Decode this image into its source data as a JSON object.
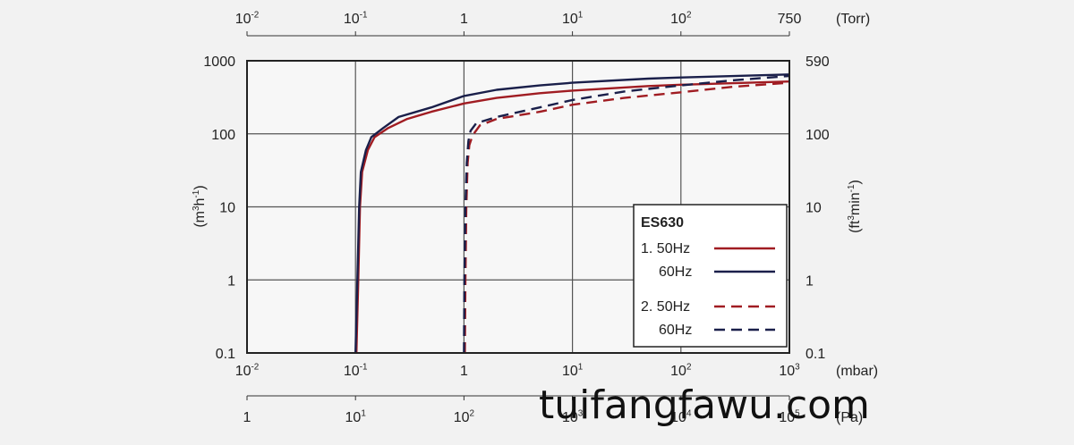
{
  "chart_data": {
    "type": "line",
    "title": "",
    "legend": {
      "title": "ES630",
      "placement": "bottom-right",
      "entries": [
        {
          "label": "1. 50Hz",
          "series": 0
        },
        {
          "label": "60Hz",
          "series": 1
        },
        {
          "label": "2. 50Hz",
          "series": 2
        },
        {
          "label": "60Hz",
          "series": 3
        }
      ]
    },
    "x_scale": "log",
    "y_scale": "log",
    "xlim": [
      0.01,
      1000
    ],
    "ylim": [
      0.1,
      1000
    ],
    "grid": true,
    "axes": {
      "bottom": {
        "unit": "(mbar)",
        "ticks": [
          {
            "v": 0.01,
            "b": "10",
            "e": "-2"
          },
          {
            "v": 0.1,
            "b": "10",
            "e": "-1"
          },
          {
            "v": 1,
            "b": "1",
            "e": ""
          },
          {
            "v": 10,
            "b": "10",
            "e": "1"
          },
          {
            "v": 100,
            "b": "10",
            "e": "2"
          },
          {
            "v": 1000,
            "b": "10",
            "e": "3"
          }
        ]
      },
      "secondary_bottom": {
        "unit": "(Pa)",
        "ticks": [
          {
            "v": 1,
            "b": "1",
            "e": ""
          },
          {
            "v": 10,
            "b": "10",
            "e": "1"
          },
          {
            "v": 100,
            "b": "10",
            "e": "2"
          },
          {
            "v": 1000,
            "b": "10",
            "e": "3"
          },
          {
            "v": 10000,
            "b": "10",
            "e": "4"
          },
          {
            "v": 100000,
            "b": "10",
            "e": "5"
          }
        ]
      },
      "top": {
        "unit": "(Torr)",
        "ticks": [
          {
            "v": 0.01,
            "b": "10",
            "e": "-2"
          },
          {
            "v": 0.1,
            "b": "10",
            "e": "-1"
          },
          {
            "v": 1,
            "b": "1",
            "e": ""
          },
          {
            "v": 10,
            "b": "10",
            "e": "1"
          },
          {
            "v": 100,
            "b": "10",
            "e": "2"
          },
          {
            "v": 750,
            "b": "750",
            "e": ""
          }
        ]
      },
      "left": {
        "label_base": "(m",
        "label_sup1": "3",
        "label_mid": "h",
        "label_sup2": "-1",
        "label_end": ")",
        "ticks": [
          {
            "v": 0.1,
            "t": "0.1"
          },
          {
            "v": 1,
            "t": "1"
          },
          {
            "v": 10,
            "t": "10"
          },
          {
            "v": 100,
            "t": "100"
          },
          {
            "v": 1000,
            "t": "1000"
          }
        ]
      },
      "right": {
        "label_base": "(ft",
        "label_sup1": "3",
        "label_mid": "min",
        "label_sup2": "-1",
        "label_end": ")",
        "ticks": [
          {
            "v": 0.1,
            "t": "0.1"
          },
          {
            "v": 1,
            "t": "1"
          },
          {
            "v": 10,
            "t": "10"
          },
          {
            "v": 100,
            "t": "100"
          },
          {
            "v": 590,
            "t": "590"
          }
        ]
      }
    },
    "series": [
      {
        "color": "#a01c22",
        "dash": false,
        "points": [
          [
            0.102,
            0.1
          ],
          [
            0.106,
            1
          ],
          [
            0.11,
            10
          ],
          [
            0.115,
            30
          ],
          [
            0.13,
            60
          ],
          [
            0.15,
            90
          ],
          [
            0.2,
            120
          ],
          [
            0.3,
            160
          ],
          [
            0.5,
            200
          ],
          [
            1,
            260
          ],
          [
            2,
            310
          ],
          [
            5,
            360
          ],
          [
            10,
            390
          ],
          [
            50,
            450
          ],
          [
            100,
            470
          ],
          [
            1000,
            520
          ]
        ]
      },
      {
        "color": "#1a1f4a",
        "dash": false,
        "points": [
          [
            0.1,
            0.1
          ],
          [
            0.104,
            1
          ],
          [
            0.108,
            10
          ],
          [
            0.112,
            30
          ],
          [
            0.125,
            60
          ],
          [
            0.14,
            90
          ],
          [
            0.18,
            120
          ],
          [
            0.25,
            170
          ],
          [
            0.5,
            230
          ],
          [
            1,
            330
          ],
          [
            2,
            400
          ],
          [
            5,
            460
          ],
          [
            10,
            500
          ],
          [
            50,
            570
          ],
          [
            100,
            590
          ],
          [
            1000,
            650
          ]
        ]
      },
      {
        "color": "#a01c22",
        "dash": true,
        "points": [
          [
            1.02,
            0.1
          ],
          [
            1.03,
            1
          ],
          [
            1.05,
            10
          ],
          [
            1.08,
            40
          ],
          [
            1.12,
            70
          ],
          [
            1.2,
            95
          ],
          [
            1.4,
            130
          ],
          [
            2,
            160
          ],
          [
            5,
            200
          ],
          [
            10,
            250
          ],
          [
            30,
            310
          ],
          [
            100,
            370
          ],
          [
            300,
            440
          ],
          [
            1000,
            500
          ]
        ]
      },
      {
        "color": "#1a1f4a",
        "dash": true,
        "points": [
          [
            1,
            0.1
          ],
          [
            1.01,
            1
          ],
          [
            1.03,
            10
          ],
          [
            1.06,
            40
          ],
          [
            1.1,
            80
          ],
          [
            1.15,
            110
          ],
          [
            1.3,
            140
          ],
          [
            2,
            170
          ],
          [
            5,
            230
          ],
          [
            10,
            290
          ],
          [
            30,
            380
          ],
          [
            100,
            460
          ],
          [
            300,
            540
          ],
          [
            1000,
            620
          ]
        ]
      }
    ]
  },
  "watermark": "tuifangfawu.com"
}
